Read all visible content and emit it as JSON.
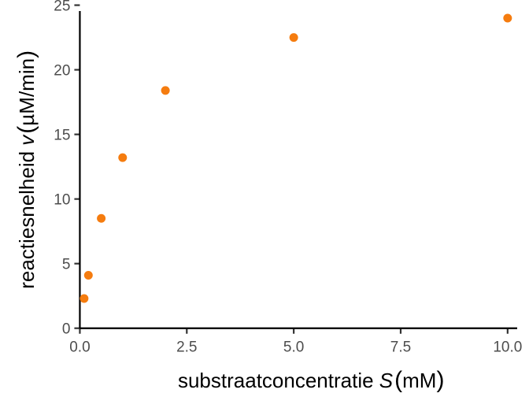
{
  "chart_data": {
    "type": "scatter",
    "x": [
      0.1,
      0.2,
      0.5,
      1.0,
      2.0,
      5.0,
      10.0
    ],
    "y": [
      2.3,
      4.1,
      8.5,
      13.2,
      18.4,
      22.5,
      24.0
    ],
    "xlabel": {
      "prefix": "substraatconcentratie ",
      "symbol": "S",
      "unit_open": "(",
      "unit": "mM",
      "unit_close": ")"
    },
    "ylabel": {
      "prefix": "reactiesnelheid ",
      "symbol": "v",
      "unit_open": "(",
      "unit": "µM/min",
      "unit_close": ")"
    },
    "xlim": [
      -0.1,
      10.5
    ],
    "ylim": [
      -0.2,
      25.4
    ],
    "xticks": [
      "0.0",
      "2.5",
      "5.0",
      "7.5",
      "10.0"
    ],
    "yticks": [
      "0",
      "5",
      "10",
      "15",
      "20",
      "25"
    ],
    "grid": false,
    "legend": "none",
    "point_color": "#F57C0F"
  }
}
